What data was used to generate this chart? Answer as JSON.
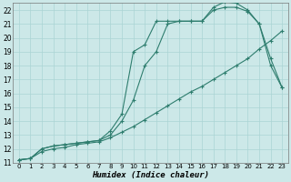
{
  "title": "",
  "xlabel": "Humidex (Indice chaleur)",
  "bg_color": "#cce8e8",
  "grid_color": "#aad4d4",
  "line_color": "#2e7d6e",
  "xlim": [
    -0.5,
    23.5
  ],
  "ylim": [
    11,
    22.5
  ],
  "xticks": [
    0,
    1,
    2,
    3,
    4,
    5,
    6,
    7,
    8,
    9,
    10,
    11,
    12,
    13,
    14,
    15,
    16,
    17,
    18,
    19,
    20,
    21,
    22,
    23
  ],
  "yticks": [
    11,
    12,
    13,
    14,
    15,
    16,
    17,
    18,
    19,
    20,
    21,
    22
  ],
  "line1_x": [
    0,
    1,
    2,
    3,
    4,
    5,
    6,
    7,
    8,
    9,
    10,
    11,
    12,
    13,
    14,
    15,
    16,
    17,
    18,
    19,
    20,
    21,
    22,
    23
  ],
  "line1_y": [
    11.2,
    11.3,
    12.0,
    12.2,
    12.3,
    12.4,
    12.5,
    12.6,
    13.0,
    14.0,
    15.5,
    18.0,
    19.0,
    21.0,
    21.2,
    21.2,
    21.2,
    22.2,
    22.6,
    22.5,
    22.0,
    21.0,
    18.5,
    16.4
  ],
  "line2_x": [
    0,
    1,
    2,
    3,
    4,
    5,
    6,
    7,
    8,
    9,
    10,
    11,
    12,
    13,
    14,
    15,
    16,
    17,
    18,
    19,
    20,
    21,
    22,
    23
  ],
  "line2_y": [
    11.2,
    11.3,
    12.0,
    12.2,
    12.3,
    12.4,
    12.5,
    12.6,
    13.3,
    14.5,
    19.0,
    19.5,
    21.2,
    21.2,
    21.2,
    21.2,
    21.2,
    22.0,
    22.2,
    22.2,
    21.9,
    21.0,
    18.0,
    16.4
  ],
  "line3_x": [
    0,
    1,
    2,
    3,
    4,
    5,
    6,
    7,
    8,
    9,
    10,
    11,
    12,
    13,
    14,
    15,
    16,
    17,
    18,
    19,
    20,
    21,
    22,
    23
  ],
  "line3_y": [
    11.2,
    11.3,
    11.8,
    12.0,
    12.1,
    12.3,
    12.4,
    12.5,
    12.8,
    13.2,
    13.6,
    14.1,
    14.6,
    15.1,
    15.6,
    16.1,
    16.5,
    17.0,
    17.5,
    18.0,
    18.5,
    19.2,
    19.8,
    20.5
  ]
}
